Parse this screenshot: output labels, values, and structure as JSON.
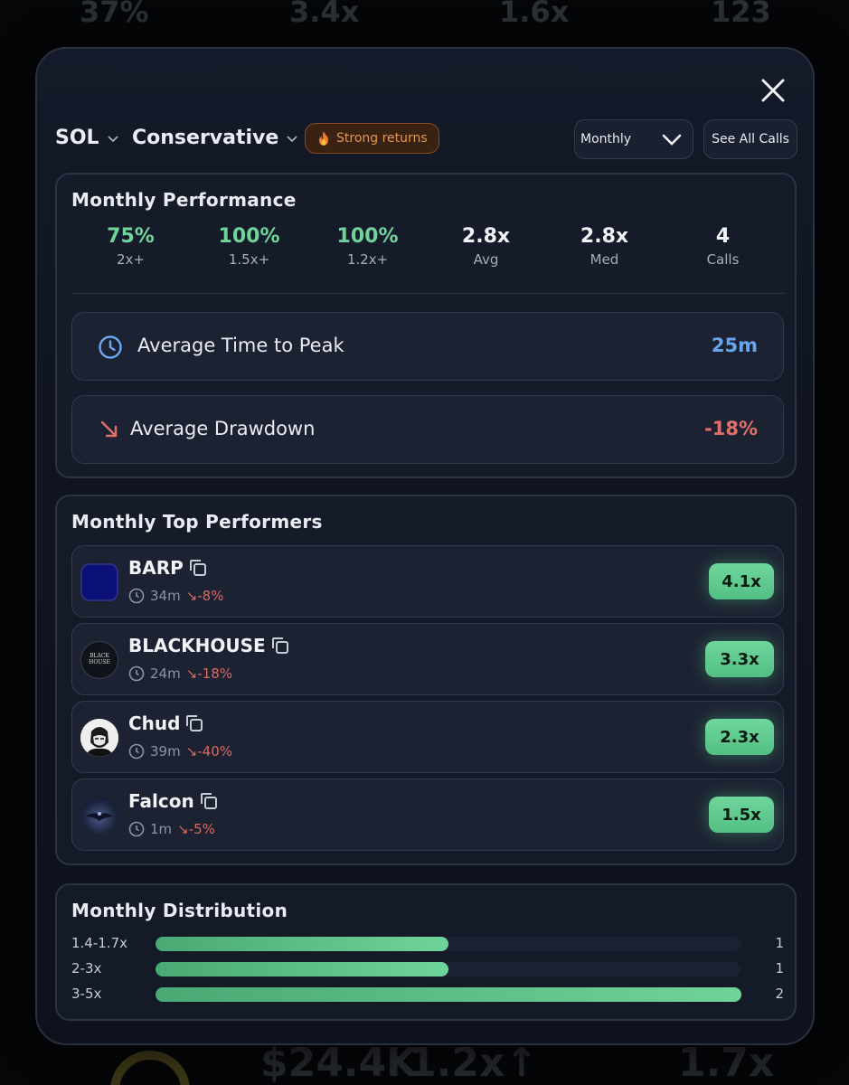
{
  "background": {
    "top_stats": [
      "37%",
      "3.4x",
      "1.6x",
      "123"
    ],
    "bottom_value": "$24.4K",
    "bottom_mult": "1.2x↑",
    "bottom_right": "1.7x"
  },
  "header": {
    "chain": "SOL",
    "strategy": "Conservative",
    "badge": "Strong returns",
    "badge_icon": "fire-icon",
    "period_select": "Monthly",
    "see_all": "See All Calls"
  },
  "performance": {
    "title": "Monthly Performance",
    "stats": [
      {
        "value": "75%",
        "label": "2x+",
        "color": "green"
      },
      {
        "value": "100%",
        "label": "1.5x+",
        "color": "green"
      },
      {
        "value": "100%",
        "label": "1.2x+",
        "color": "green"
      },
      {
        "value": "2.8x",
        "label": "Avg",
        "color": "white"
      },
      {
        "value": "2.8x",
        "label": "Med",
        "color": "white"
      },
      {
        "value": "4",
        "label": "Calls",
        "color": "white"
      }
    ],
    "time_to_peak": {
      "label": "Average Time to Peak",
      "value": "25m",
      "color": "#6aa6f0"
    },
    "drawdown": {
      "label": "Average Drawdown",
      "value": "-18%",
      "color": "#e0716a"
    }
  },
  "top_performers": {
    "title": "Monthly Top Performers",
    "items": [
      {
        "name": "BARP",
        "time": "34m",
        "drawdown": "↘-8%",
        "mult": "4.1x"
      },
      {
        "name": "BLACKHOUSE",
        "time": "24m",
        "drawdown": "↘-18%",
        "mult": "3.3x",
        "logo_text": "BLACK HOUSE"
      },
      {
        "name": "Chud",
        "time": "39m",
        "drawdown": "↘-40%",
        "mult": "2.3x"
      },
      {
        "name": "Falcon",
        "time": "1m",
        "drawdown": "↘-5%",
        "mult": "1.5x"
      }
    ]
  },
  "distribution": {
    "title": "Monthly Distribution",
    "rows": [
      {
        "label": "1.4-1.7x",
        "count": "1",
        "fraction": 0.5
      },
      {
        "label": "2-3x",
        "count": "1",
        "fraction": 0.5
      },
      {
        "label": "3-5x",
        "count": "2",
        "fraction": 1.0
      }
    ]
  }
}
